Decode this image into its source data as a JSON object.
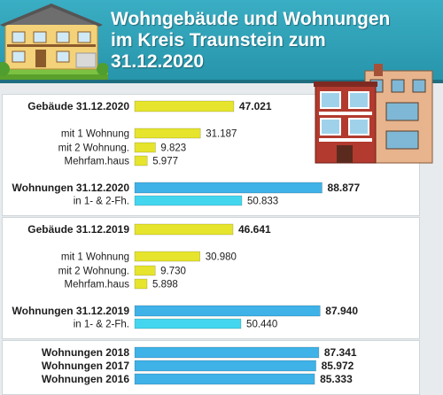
{
  "title_lines": [
    "Wohngebäude und Wohnungen",
    "im Kreis Traunstein zum",
    "31.12.2020"
  ],
  "colors": {
    "header": "#2d9cb3",
    "bar_buildings": "#e6e42c",
    "bar_apartments": "#3fb2e8",
    "bar_apartments_12": "#44d6ee"
  },
  "icons": [
    "house-illustration",
    "apartment-building-illustration"
  ],
  "chart_data": {
    "type": "bar",
    "orientation": "horizontal",
    "xlim": [
      0,
      100000
    ],
    "groups": [
      {
        "rows": [
          {
            "label": "Gebäude 31.12.2020",
            "value": 47021,
            "display": "47.021",
            "bold": true,
            "color": "bar_buildings"
          },
          {
            "label": "mit 1 Wohnung",
            "value": 31187,
            "display": "31.187",
            "bold": false,
            "color": "bar_buildings"
          },
          {
            "label": "mit 2 Wohnung.",
            "value": 9823,
            "display": "9.823",
            "bold": false,
            "color": "bar_buildings"
          },
          {
            "label": "Mehrfam.haus",
            "value": 5977,
            "display": "5.977",
            "bold": false,
            "color": "bar_buildings"
          },
          {
            "label": "Wohnungen 31.12.2020",
            "value": 88877,
            "display": "88.877",
            "bold": true,
            "color": "bar_apartments"
          },
          {
            "label": "in 1- & 2-Fh.",
            "value": 50833,
            "display": "50.833",
            "bold": false,
            "color": "bar_apartments_12"
          }
        ]
      },
      {
        "rows": [
          {
            "label": "Gebäude 31.12.2019",
            "value": 46641,
            "display": "46.641",
            "bold": true,
            "color": "bar_buildings"
          },
          {
            "label": "mit 1 Wohnung",
            "value": 30980,
            "display": "30.980",
            "bold": false,
            "color": "bar_buildings"
          },
          {
            "label": "mit 2 Wohnung.",
            "value": 9730,
            "display": "9.730",
            "bold": false,
            "color": "bar_buildings"
          },
          {
            "label": "Mehrfam.haus",
            "value": 5898,
            "display": "5.898",
            "bold": false,
            "color": "bar_buildings"
          },
          {
            "label": "Wohnungen 31.12.2019",
            "value": 87940,
            "display": "87.940",
            "bold": true,
            "color": "bar_apartments"
          },
          {
            "label": "in 1- & 2-Fh.",
            "value": 50440,
            "display": "50.440",
            "bold": false,
            "color": "bar_apartments_12"
          }
        ]
      },
      {
        "rows": [
          {
            "label": "Wohnungen 2018",
            "value": 87341,
            "display": "87.341",
            "bold": true,
            "color": "bar_apartments"
          },
          {
            "label": "Wohnungen 2017",
            "value": 85972,
            "display": "85.972",
            "bold": true,
            "color": "bar_apartments"
          },
          {
            "label": "Wohnungen 2016",
            "value": 85333,
            "display": "85.333",
            "bold": true,
            "color": "bar_apartments"
          }
        ]
      }
    ]
  }
}
